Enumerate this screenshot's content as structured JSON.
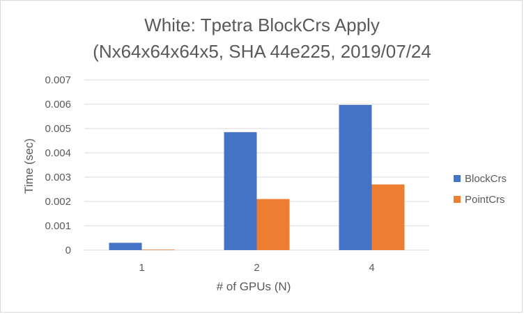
{
  "chart_data": {
    "type": "bar",
    "title_line1": "White: Tpetra BlockCrs Apply",
    "title_line2": "(Nx64x64x64x5, SHA 44e225, 2019/07/24",
    "xlabel": "# of GPUs (N)",
    "ylabel": "Time (sec)",
    "categories": [
      "1",
      "2",
      "4"
    ],
    "series": [
      {
        "name": "BlockCrs",
        "color": "#4472c4",
        "values": [
          0.0003,
          0.00485,
          0.00597
        ]
      },
      {
        "name": "PointCrs",
        "color": "#ed7d31",
        "values": [
          2e-05,
          0.0021,
          0.0027
        ]
      }
    ],
    "ylim": [
      0,
      0.007
    ],
    "yticks": [
      "0",
      "0.001",
      "0.002",
      "0.003",
      "0.004",
      "0.005",
      "0.006",
      "0.007"
    ],
    "grid": true,
    "legend_position": "right"
  }
}
